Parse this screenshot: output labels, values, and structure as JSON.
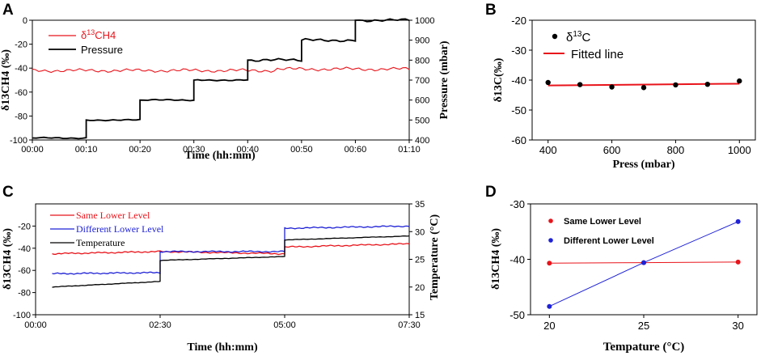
{
  "chart_data": [
    {
      "panel": "A",
      "type": "line",
      "xlabel": "Time (hh:mm)",
      "ylabel": "δ13CH4 (‰)",
      "ylabel_right": "Pressure (mbar)",
      "xlim": [
        0,
        70
      ],
      "ylim": [
        -100,
        0
      ],
      "ylim_right": [
        400,
        1000
      ],
      "x_ticks": [
        "00:00",
        "00:10",
        "00:20",
        "00:30",
        "00:40",
        "00:50",
        "00:60",
        "01:10"
      ],
      "y_ticks": [
        "0",
        "-20",
        "-40",
        "-60",
        "-80",
        "-100"
      ],
      "y_ticks_right": [
        "1000",
        "900",
        "800",
        "700",
        "600",
        "500",
        "400"
      ],
      "legend": [
        "δ13CH4",
        "Pressure"
      ],
      "legend_display": {
        "delta_prefix": "δ",
        "delta_sup": "13",
        "delta_suffix": "CH4",
        "pressure": "Pressure"
      },
      "series": [
        {
          "name": "δ13CH4",
          "axis": "left",
          "color": "#e8141b",
          "mean": -42
        },
        {
          "name": "Pressure",
          "axis": "right",
          "color": "#000000",
          "steps": [
            [
              0,
              410
            ],
            [
              10,
              500
            ],
            [
              20,
              600
            ],
            [
              30,
              700
            ],
            [
              40,
              800
            ],
            [
              50,
              900
            ],
            [
              60,
              1000
            ]
          ],
          "end_x": 70
        }
      ]
    },
    {
      "panel": "B",
      "type": "scatter",
      "xlabel": "Press (mbar)",
      "ylabel": "δ13C(‰)",
      "xlim": [
        350,
        1050
      ],
      "ylim": [
        -60,
        -20
      ],
      "x_ticks": [
        "400",
        "600",
        "800",
        "1000"
      ],
      "y_ticks": [
        "-20",
        "-30",
        "-40",
        "-50",
        "-60"
      ],
      "legend": [
        "δ13C",
        "Fitted line"
      ],
      "legend_display": {
        "delta_prefix": "δ",
        "delta_sup": "13",
        "delta_suffix": "C",
        "fit": "Fitted line"
      },
      "series": [
        {
          "name": "δ13C",
          "color": "#000000",
          "x": [
            400,
            500,
            600,
            700,
            800,
            900,
            1000
          ],
          "y": [
            -40.8,
            -41.5,
            -42.3,
            -42.5,
            -41.6,
            -41.4,
            -40.3
          ]
        },
        {
          "name": "Fitted line",
          "color": "#e8141b",
          "x": [
            400,
            1000
          ],
          "y": [
            -41.8,
            -41.2
          ]
        }
      ]
    },
    {
      "panel": "C",
      "type": "line",
      "xlabel": "Time (hh:mm)",
      "ylabel": "δ13CH4 (‰)",
      "ylabel_right": "Temperature (°C)",
      "xlim": [
        0,
        450
      ],
      "ylim": [
        -100,
        0
      ],
      "ylim_right": [
        15,
        35
      ],
      "x_ticks": [
        "00:00",
        "02:30",
        "05:00",
        "07:30"
      ],
      "y_ticks": [
        "-20",
        "-40",
        "-60",
        "-80",
        "-100"
      ],
      "y_ticks_right": [
        "35",
        "30",
        "25",
        "20",
        "15"
      ],
      "legend": [
        "Same Lower Level",
        "Different Lower Level",
        "Temperature"
      ],
      "series": [
        {
          "name": "Same Lower Level",
          "axis": "left",
          "color": "#e8141b",
          "segments": [
            [
              20,
              150,
              -45,
              -43
            ],
            [
              150,
              300,
              -43,
              -45
            ],
            [
              300,
              450,
              -39,
              -36
            ]
          ]
        },
        {
          "name": "Different Lower Level",
          "axis": "left",
          "color": "#1f22d6",
          "segments": [
            [
              20,
              150,
              -63,
              -62
            ],
            [
              150,
              300,
              -43,
              -43
            ],
            [
              300,
              450,
              -22,
              -20
            ]
          ]
        },
        {
          "name": "Temperature",
          "axis": "right",
          "color": "#000000",
          "segments": [
            [
              20,
              150,
              20.0,
              21.0
            ],
            [
              150,
              300,
              24.8,
              25.5
            ],
            [
              300,
              450,
              28.5,
              29.2
            ]
          ]
        }
      ]
    },
    {
      "panel": "D",
      "type": "line",
      "xlabel": "Tempature (°C)",
      "ylabel": "δ13CH4 (‰)",
      "xlim": [
        19,
        31
      ],
      "ylim": [
        -50,
        -30
      ],
      "x_ticks": [
        "20",
        "25",
        "30"
      ],
      "y_ticks": [
        "-30",
        "-40",
        "-50"
      ],
      "legend": [
        "Same Lower  Level",
        "Different Lower Level"
      ],
      "series": [
        {
          "name": "Same Lower  Level",
          "color": "#e8141b",
          "x": [
            20,
            25,
            30
          ],
          "y": [
            -40.7,
            -40.6,
            -40.5
          ]
        },
        {
          "name": "Different Lower Level",
          "color": "#1f22d6",
          "x": [
            20,
            25,
            30
          ],
          "y": [
            -48.5,
            -40.6,
            -33.2
          ]
        }
      ]
    }
  ],
  "panel_labels": [
    "A",
    "B",
    "C",
    "D"
  ]
}
